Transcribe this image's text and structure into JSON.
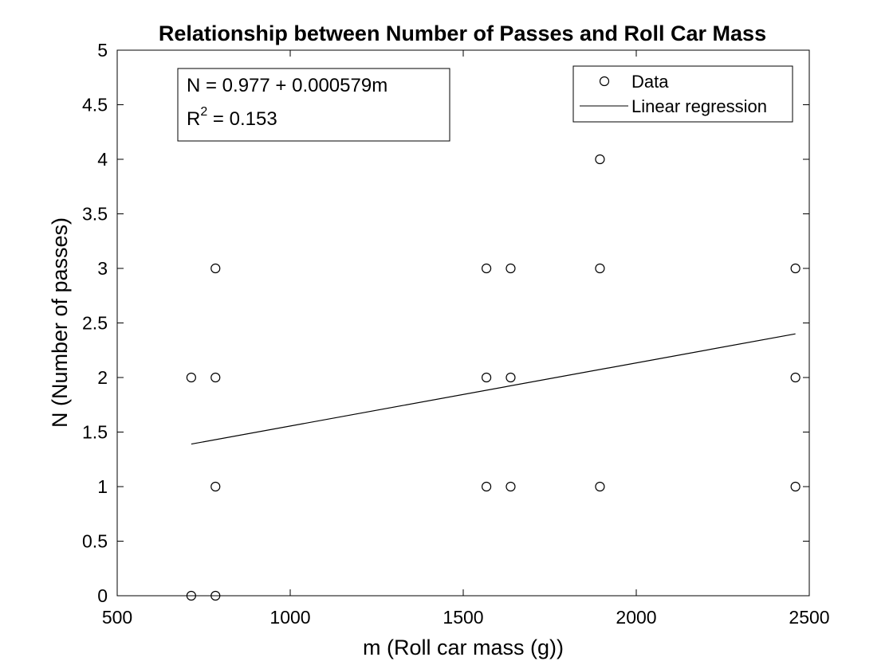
{
  "chart_data": {
    "type": "scatter",
    "title": "Relationship between Number of Passes and Roll Car Mass",
    "xlabel": "m (Roll car mass (g))",
    "ylabel": "N (Number of passes)",
    "xlim": [
      500,
      2500
    ],
    "ylim": [
      0,
      5
    ],
    "xticks": [
      500,
      1000,
      1500,
      2000,
      2500
    ],
    "xtick_labels": [
      "500",
      "1000",
      "1500",
      "2000",
      "2500"
    ],
    "yticks": [
      0,
      0.5,
      1,
      1.5,
      2,
      2.5,
      3,
      3.5,
      4,
      4.5,
      5
    ],
    "ytick_labels": [
      "0",
      "0.5",
      "1",
      "1.5",
      "2",
      "2.5",
      "3",
      "3.5",
      "4",
      "4.5",
      "5"
    ],
    "grid": false,
    "legend_position": "top-right",
    "series": [
      {
        "name": "Data",
        "kind": "scatter",
        "marker": "open-circle",
        "x": [
          714,
          714,
          784,
          784,
          784,
          784,
          1567,
          1567,
          1567,
          1637,
          1637,
          1637,
          1895,
          1895,
          1895,
          2460,
          2460,
          2460
        ],
        "y": [
          2,
          0,
          3,
          2,
          1,
          0,
          3,
          2,
          1,
          3,
          2,
          1,
          4,
          3,
          1,
          3,
          2,
          1
        ]
      },
      {
        "name": "Linear regression",
        "kind": "line",
        "x": [
          714,
          2460
        ],
        "y": [
          1.39,
          2.4
        ]
      }
    ],
    "annotation": {
      "line1": "N = 0.977 + 0.000579m",
      "line2_prefix": "R",
      "line2_sup": "2",
      "line2_suffix": " = 0.153"
    }
  },
  "colors": {
    "background": "#ffffff",
    "axes": "#000000",
    "marker": "#000000",
    "line": "#000000"
  }
}
